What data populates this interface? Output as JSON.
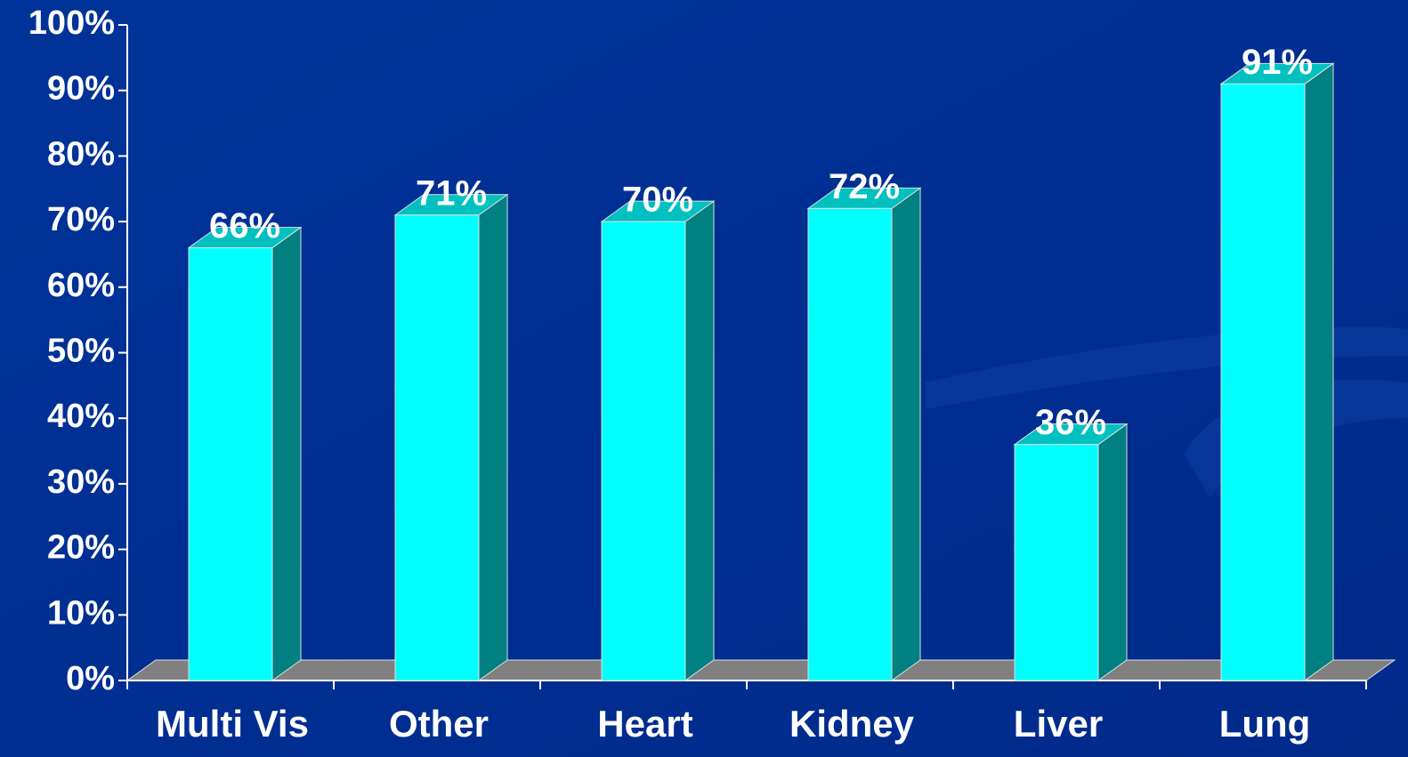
{
  "chart_data": {
    "type": "bar3d",
    "categories": [
      "Multi Vis",
      "Other",
      "Heart",
      "Kidney",
      "Liver",
      "Lung"
    ],
    "values": [
      66,
      71,
      70,
      72,
      36,
      91
    ],
    "value_labels": [
      "66%",
      "71%",
      "70%",
      "72%",
      "36%",
      "91%"
    ],
    "color": "#00ffff",
    "ylim": [
      0,
      100
    ],
    "yticks": [
      {
        "value": 0,
        "label": "0%"
      },
      {
        "value": 10,
        "label": "10%"
      },
      {
        "value": 20,
        "label": "20%"
      },
      {
        "value": 30,
        "label": "30%"
      },
      {
        "value": 40,
        "label": "40%"
      },
      {
        "value": 50,
        "label": "50%"
      },
      {
        "value": 60,
        "label": "60%"
      },
      {
        "value": 70,
        "label": "70%"
      },
      {
        "value": 80,
        "label": "80%"
      },
      {
        "value": 90,
        "label": "90%"
      },
      {
        "value": 100,
        "label": "100%"
      }
    ]
  }
}
